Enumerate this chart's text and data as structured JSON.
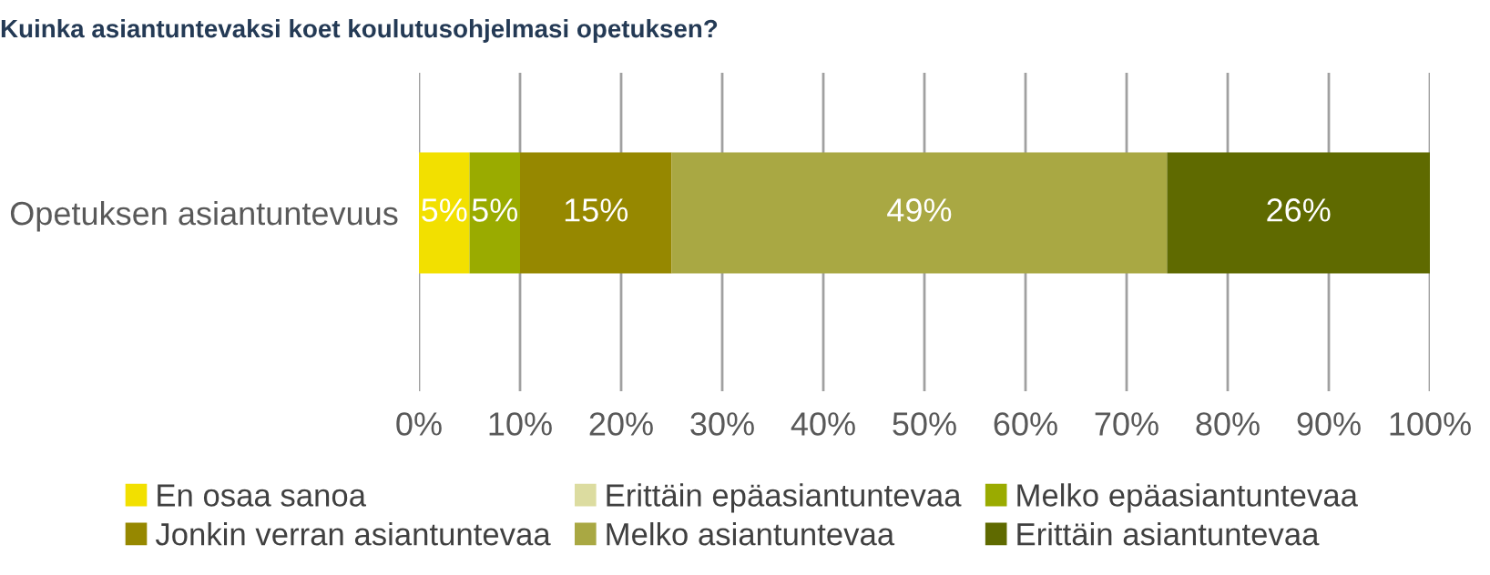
{
  "chart_data": {
    "type": "bar",
    "orientation": "horizontal",
    "stacked": true,
    "title": "Kuinka asiantuntevaksi koet koulutusohjelmasi opetuksen?",
    "categories": [
      "Opetuksen asiantuntevuus"
    ],
    "series": [
      {
        "name": "En osaa sanoa",
        "color": "#f2e000",
        "values": [
          5
        ],
        "value_labels": [
          "5%"
        ]
      },
      {
        "name": "Erittäin epäasiantuntevaa",
        "color": "#dcdca0",
        "values": [
          0
        ],
        "value_labels": [
          null
        ]
      },
      {
        "name": "Melko epäasiantuntevaa",
        "color": "#9aab00",
        "values": [
          5
        ],
        "value_labels": [
          "5%"
        ]
      },
      {
        "name": "Jonkin verran asiantuntevaa",
        "color": "#968800",
        "values": [
          15
        ],
        "value_labels": [
          "15%"
        ]
      },
      {
        "name": "Melko asiantuntevaa",
        "color": "#a9a843",
        "values": [
          49
        ],
        "value_labels": [
          "49%"
        ]
      },
      {
        "name": "Erittäin asiantuntevaa",
        "color": "#5f6a00",
        "values": [
          26
        ],
        "value_labels": [
          "26%"
        ]
      }
    ],
    "xlim": [
      0,
      100
    ],
    "xticks": [
      {
        "value": 0,
        "label": "0%"
      },
      {
        "value": 10,
        "label": "10%"
      },
      {
        "value": 20,
        "label": "20%"
      },
      {
        "value": 30,
        "label": "30%"
      },
      {
        "value": 40,
        "label": "40%"
      },
      {
        "value": 50,
        "label": "50%"
      },
      {
        "value": 60,
        "label": "60%"
      },
      {
        "value": 70,
        "label": "70%"
      },
      {
        "value": 80,
        "label": "80%"
      },
      {
        "value": 90,
        "label": "90%"
      },
      {
        "value": 100,
        "label": "100%"
      }
    ],
    "grid": "x",
    "legend": "bottom"
  }
}
